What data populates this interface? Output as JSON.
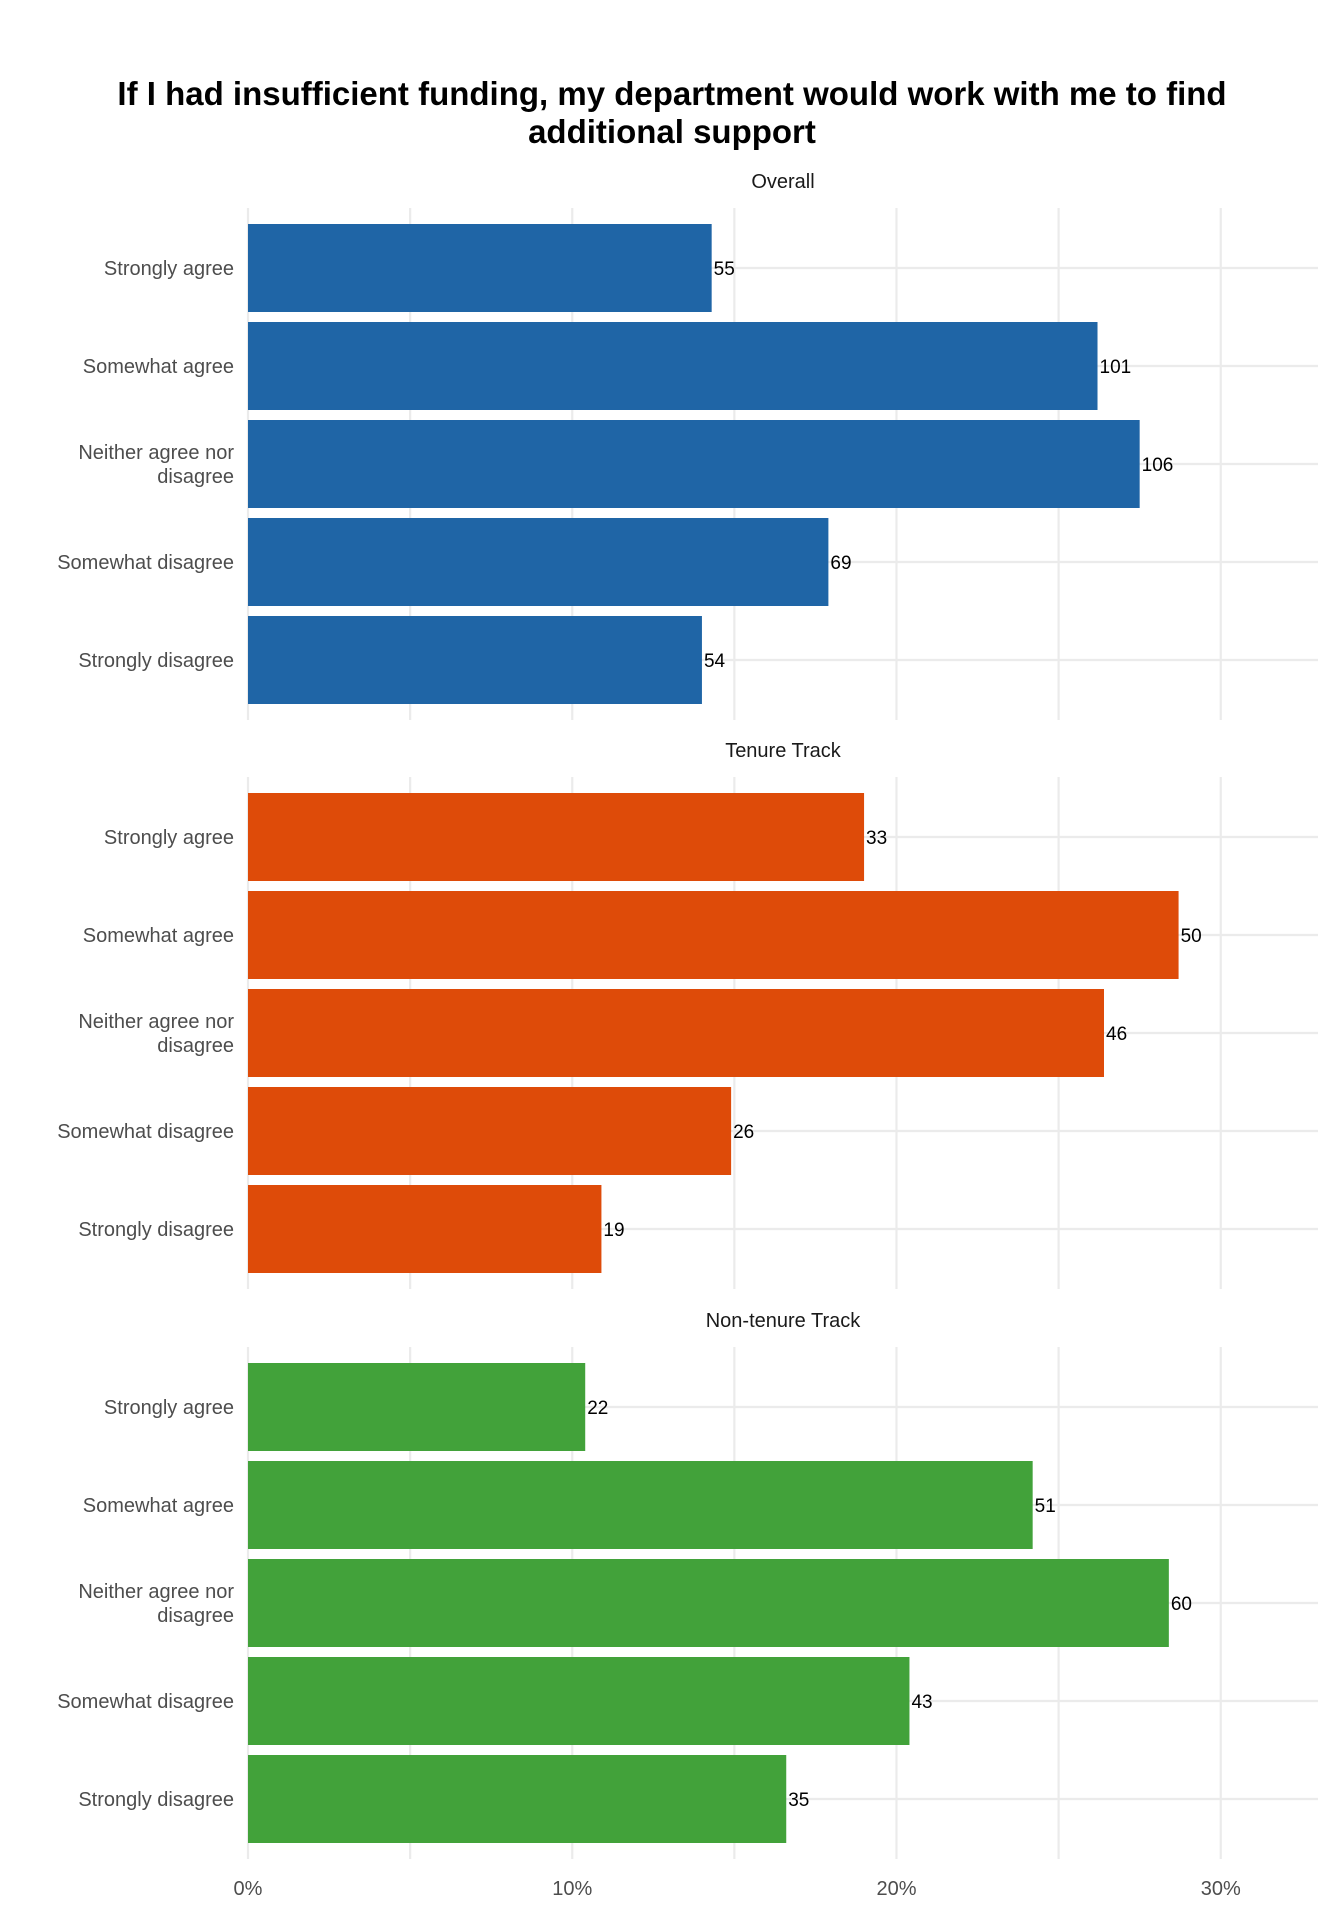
{
  "chart_data": {
    "type": "bar",
    "orientation": "horizontal",
    "title": "If I had insufficient funding, my department would work with me to find additional support",
    "title_lines": [
      "If I had insufficient funding, my department would work with me to find",
      "additional support"
    ],
    "categories": [
      [
        "Strongly agree"
      ],
      [
        "Somewhat agree"
      ],
      [
        "Neither agree nor",
        "disagree"
      ],
      [
        "Somewhat disagree"
      ],
      [
        "Strongly disagree"
      ]
    ],
    "xlim": [
      0,
      0.33
    ],
    "x_ticks": [
      {
        "value": 0,
        "label": "0%"
      },
      {
        "value": 0.1,
        "label": "10%"
      },
      {
        "value": 0.2,
        "label": "20%"
      },
      {
        "value": 0.3,
        "label": "30%"
      }
    ],
    "x_minor_ticks": [
      0.05,
      0.15,
      0.25
    ],
    "grid": true,
    "legend": "none",
    "panels": [
      {
        "name": "Overall",
        "color": "#1f65a6",
        "counts": [
          55,
          101,
          106,
          69,
          54
        ],
        "labels": [
          "55",
          "101",
          "106",
          "69",
          "54"
        ],
        "percent": [
          0.143,
          0.262,
          0.275,
          0.179,
          0.14
        ]
      },
      {
        "name": "Tenure Track",
        "color": "#de4b09",
        "counts": [
          33,
          50,
          46,
          26,
          19
        ],
        "labels": [
          "33",
          "50",
          "46",
          "26",
          "19"
        ],
        "percent": [
          0.19,
          0.287,
          0.264,
          0.149,
          0.109
        ]
      },
      {
        "name": "Non-tenure Track",
        "color": "#42a23a",
        "counts": [
          22,
          51,
          60,
          43,
          35
        ],
        "labels": [
          "22",
          "51",
          "60",
          "43",
          "35"
        ],
        "percent": [
          0.104,
          0.242,
          0.284,
          0.204,
          0.166
        ]
      }
    ]
  }
}
